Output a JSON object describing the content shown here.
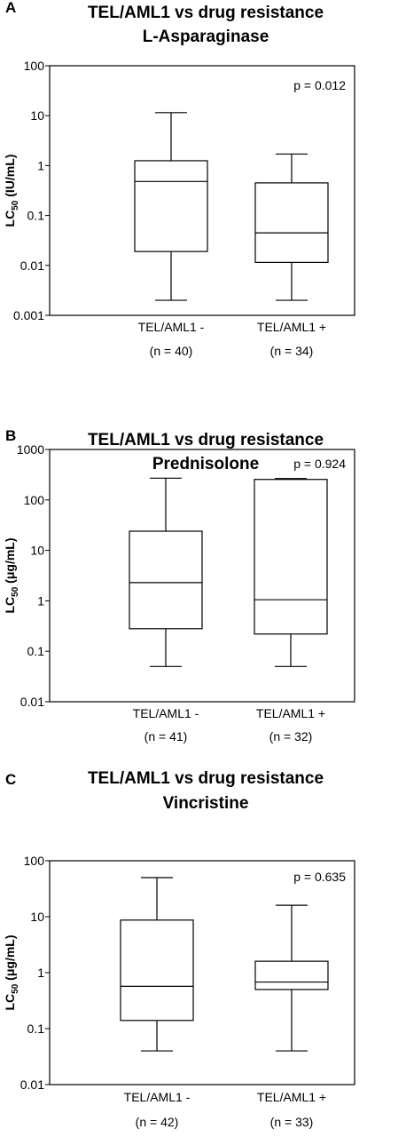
{
  "chart_data": [
    {
      "type": "box",
      "panel": "A",
      "title_lines": [
        "TEL/AML1 vs drug resistance",
        "L-Asparaginase"
      ],
      "ylabel": {
        "main": "LC",
        "sub": "50",
        "unit": " (IU/mL)"
      },
      "yscale": "log",
      "ylim": [
        0.001,
        100
      ],
      "yticks": [
        "0.001",
        "0.01",
        "0.1",
        "1",
        "10",
        "100"
      ],
      "grid": false,
      "annotation": "p = 0.012",
      "categories": [
        {
          "label": "TEL/AML1 -",
          "n": "(n = 40)",
          "whisker_low": 0.002,
          "q1": 0.019,
          "median": 0.48,
          "q3": 1.25,
          "whisker_high": 11.5
        },
        {
          "label": "TEL/AML1 +",
          "n": "(n = 34)",
          "whisker_low": 0.002,
          "q1": 0.0115,
          "median": 0.045,
          "q3": 0.45,
          "whisker_high": 1.7
        }
      ]
    },
    {
      "type": "box",
      "panel": "B",
      "title_lines": [
        "TEL/AML1 vs drug resistance",
        "Prednisolone"
      ],
      "ylabel": {
        "main": "LC",
        "sub": "50",
        "unit": " (μg/mL)"
      },
      "yscale": "log",
      "ylim": [
        0.01,
        1000
      ],
      "yticks": [
        "0.01",
        "0.1",
        "1",
        "10",
        "100",
        "1000"
      ],
      "grid": false,
      "annotation": "p = 0.924",
      "categories": [
        {
          "label": "TEL/AML1 -",
          "n": "(n = 41)",
          "whisker_low": 0.05,
          "q1": 0.28,
          "median": 2.3,
          "q3": 24,
          "whisker_high": 270
        },
        {
          "label": "TEL/AML1 +",
          "n": "(n = 32)",
          "whisker_low": 0.05,
          "q1": 0.22,
          "median": 1.05,
          "q3": 255,
          "whisker_high": 265
        }
      ]
    },
    {
      "type": "box",
      "panel": "C",
      "title_lines": [
        "TEL/AML1 vs drug resistance",
        "Vincristine"
      ],
      "ylabel": {
        "main": "LC",
        "sub": "50",
        "unit": " (μg/mL)"
      },
      "yscale": "log",
      "ylim": [
        0.01,
        100
      ],
      "yticks": [
        "0.01",
        "0.1",
        "1",
        "10",
        "100"
      ],
      "grid": false,
      "annotation": "p = 0.635",
      "categories": [
        {
          "label": "TEL/AML1 -",
          "n": "(n = 42)",
          "whisker_low": 0.04,
          "q1": 0.14,
          "median": 0.57,
          "q3": 8.7,
          "whisker_high": 50
        },
        {
          "label": "TEL/AML1 +",
          "n": "(n = 33)",
          "whisker_low": 0.04,
          "q1": 0.5,
          "median": 0.68,
          "q3": 1.6,
          "whisker_high": 16
        }
      ]
    }
  ]
}
